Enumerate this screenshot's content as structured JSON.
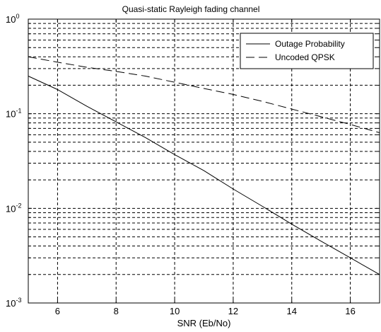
{
  "chart_data": {
    "type": "line",
    "title": "Quasi-static Rayleigh fading channel",
    "xlabel": "SNR (Eb/No)",
    "ylabel": "",
    "xlim": [
      5,
      17
    ],
    "ylim": [
      0.001,
      1
    ],
    "yscale": "log",
    "grid": true,
    "legend_position": "top-right",
    "x_ticks": [
      6,
      8,
      10,
      12,
      14,
      16
    ],
    "y_ticks": [
      {
        "value": 1,
        "base": "10",
        "exp": "0"
      },
      {
        "value": 0.1,
        "base": "10",
        "exp": "-1"
      },
      {
        "value": 0.01,
        "base": "10",
        "exp": "-2"
      },
      {
        "value": 0.001,
        "base": "10",
        "exp": "-3"
      }
    ],
    "series": [
      {
        "name": "Outage Probability",
        "style": "solid",
        "color": "#000000",
        "x": [
          5,
          6,
          7,
          8,
          9,
          10,
          11,
          12,
          13,
          14,
          15,
          16,
          17
        ],
        "y": [
          0.25,
          0.18,
          0.12,
          0.082,
          0.056,
          0.037,
          0.025,
          0.016,
          0.0105,
          0.0068,
          0.0045,
          0.003,
          0.002
        ]
      },
      {
        "name": "Uncoded QPSK",
        "style": "dashed",
        "color": "#000000",
        "x": [
          5,
          6,
          7,
          8,
          9,
          10,
          11,
          12,
          13,
          14,
          15,
          16,
          17
        ],
        "y": [
          0.4,
          0.35,
          0.31,
          0.28,
          0.25,
          0.215,
          0.185,
          0.16,
          0.135,
          0.112,
          0.093,
          0.077,
          0.063
        ]
      }
    ]
  }
}
